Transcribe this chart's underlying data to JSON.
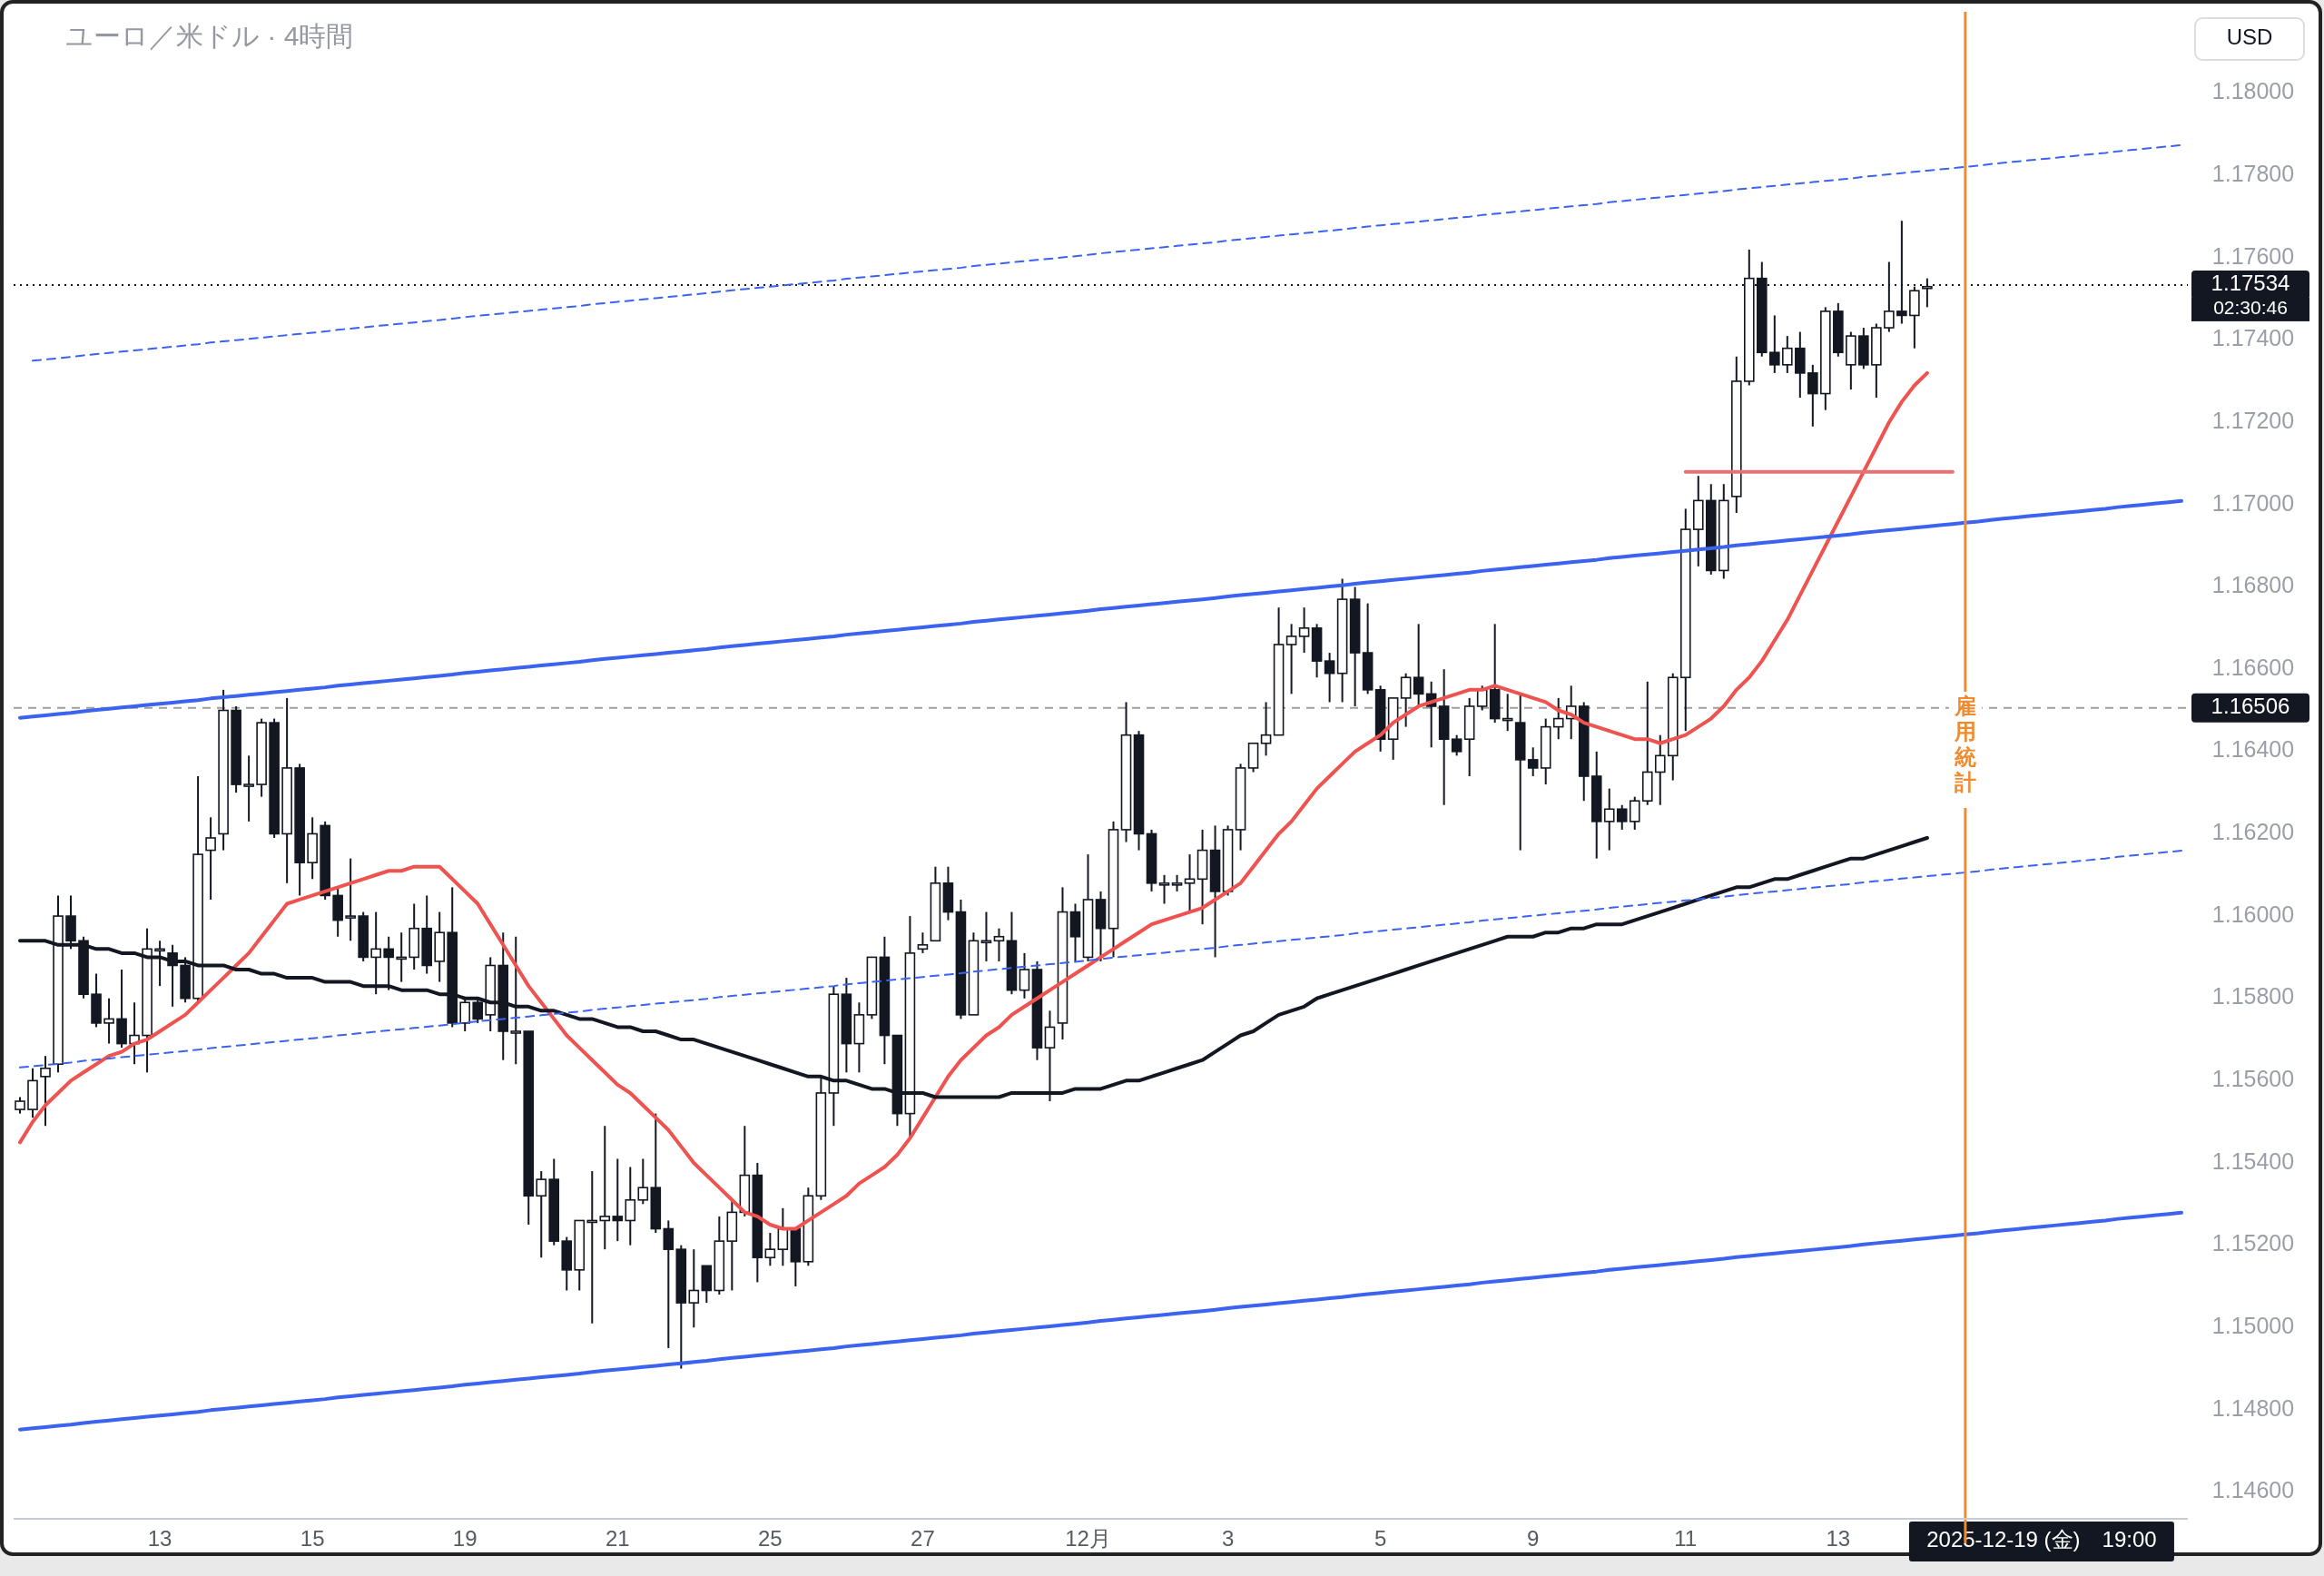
{
  "chart_data": {
    "type": "candlestick",
    "title": "ユーロ／米ドル · 4時間",
    "ylabel": "USD",
    "categories": [
      null,
      null,
      null,
      null,
      null,
      null,
      null,
      null,
      null,
      null,
      null,
      "13",
      null,
      null,
      null,
      null,
      null,
      null,
      null,
      null,
      null,
      null,
      null,
      "15",
      null,
      null,
      null,
      null,
      null,
      null,
      null,
      null,
      null,
      null,
      null,
      "19",
      null,
      null,
      null,
      null,
      null,
      null,
      null,
      null,
      null,
      null,
      null,
      "21",
      null,
      null,
      null,
      null,
      null,
      null,
      null,
      null,
      null,
      null,
      null,
      "25",
      null,
      null,
      null,
      null,
      null,
      null,
      null,
      null,
      null,
      null,
      null,
      "27",
      null,
      null,
      null,
      null,
      null,
      null,
      null,
      null,
      null,
      null,
      null,
      null,
      "12月",
      null,
      null,
      null,
      null,
      null,
      null,
      null,
      null,
      null,
      null,
      "3",
      null,
      null,
      null,
      null,
      null,
      null,
      null,
      null,
      null,
      null,
      null,
      "5",
      null,
      null,
      null,
      null,
      null,
      null,
      null,
      null,
      null,
      null,
      null,
      "9",
      null,
      null,
      null,
      null,
      null,
      null,
      null,
      null,
      null,
      null,
      null,
      "11",
      null,
      null,
      null,
      null,
      null,
      null,
      null,
      null,
      null,
      null,
      null,
      "13",
      null,
      null,
      null,
      null,
      null,
      null,
      null,
      null,
      null,
      "雇用統計",
      null,
      null,
      null,
      null,
      null,
      "2025-12-19 (金)　19:00",
      null,
      null,
      null,
      null,
      null,
      null,
      null,
      null,
      null,
      null,
      null
    ],
    "ohlc": [
      [
        1.1553,
        1.1556,
        1.1552,
        1.1555
      ],
      [
        1.1553,
        1.1563,
        1.1551,
        1.156
      ],
      [
        1.1561,
        1.1566,
        1.1549,
        1.1563
      ],
      [
        1.1564,
        1.1605,
        1.1562,
        1.16
      ],
      [
        1.16,
        1.1605,
        1.1592,
        1.1594
      ],
      [
        1.1594,
        1.1595,
        1.158,
        1.1581
      ],
      [
        1.1581,
        1.1586,
        1.1573,
        1.1574
      ],
      [
        1.1574,
        1.158,
        1.1569,
        1.1575
      ],
      [
        1.1575,
        1.1587,
        1.1568,
        1.1569
      ],
      [
        1.1569,
        1.1579,
        1.1564,
        1.1571
      ],
      [
        1.1571,
        1.1597,
        1.1562,
        1.1592
      ],
      [
        1.1592,
        1.1594,
        1.1583,
        1.1592
      ],
      [
        1.1591,
        1.1593,
        1.1578,
        1.1588
      ],
      [
        1.1588,
        1.159,
        1.1579,
        1.158
      ],
      [
        1.158,
        1.1634,
        1.1579,
        1.1615
      ],
      [
        1.1616,
        1.1624,
        1.1604,
        1.1619
      ],
      [
        1.162,
        1.1655,
        1.1616,
        1.165
      ],
      [
        1.165,
        1.1651,
        1.163,
        1.1632
      ],
      [
        1.1632,
        1.1639,
        1.1623,
        1.1632
      ],
      [
        1.1632,
        1.1648,
        1.1629,
        1.1647
      ],
      [
        1.1647,
        1.1648,
        1.1619,
        1.162
      ],
      [
        1.162,
        1.1653,
        1.1608,
        1.1636
      ],
      [
        1.1636,
        1.1637,
        1.1605,
        1.1613
      ],
      [
        1.1613,
        1.1624,
        1.1609,
        1.162
      ],
      [
        1.1622,
        1.1623,
        1.1604,
        1.1605
      ],
      [
        1.1605,
        1.1607,
        1.1595,
        1.1599
      ],
      [
        1.16,
        1.1614,
        1.1594,
        1.16
      ],
      [
        1.16,
        1.1601,
        1.1589,
        1.159
      ],
      [
        1.159,
        1.1601,
        1.1581,
        1.1592
      ],
      [
        1.1592,
        1.1595,
        1.1582,
        1.159
      ],
      [
        1.159,
        1.1596,
        1.1584,
        1.159
      ],
      [
        1.159,
        1.1603,
        1.1587,
        1.1597
      ],
      [
        1.1597,
        1.1605,
        1.1586,
        1.1588
      ],
      [
        1.1589,
        1.1601,
        1.1584,
        1.1596
      ],
      [
        1.1596,
        1.1607,
        1.1573,
        1.1574
      ],
      [
        1.1574,
        1.158,
        1.1572,
        1.1579
      ],
      [
        1.1579,
        1.158,
        1.1574,
        1.1575
      ],
      [
        1.1576,
        1.159,
        1.1572,
        1.1588
      ],
      [
        1.1588,
        1.1596,
        1.1565,
        1.1572
      ],
      [
        1.1572,
        1.1595,
        1.1564,
        1.1572
      ],
      [
        1.1572,
        1.1572,
        1.1525,
        1.1532
      ],
      [
        1.1532,
        1.1538,
        1.1517,
        1.1536
      ],
      [
        1.1536,
        1.1541,
        1.152,
        1.1521
      ],
      [
        1.1521,
        1.1522,
        1.1509,
        1.1514
      ],
      [
        1.1514,
        1.1526,
        1.1509,
        1.1526
      ],
      [
        1.1526,
        1.1538,
        1.1501,
        1.1526
      ],
      [
        1.1526,
        1.1549,
        1.1519,
        1.1527
      ],
      [
        1.1527,
        1.1541,
        1.1521,
        1.1526
      ],
      [
        1.1526,
        1.1539,
        1.152,
        1.1531
      ],
      [
        1.1531,
        1.1541,
        1.153,
        1.1534
      ],
      [
        1.1534,
        1.1552,
        1.1523,
        1.1524
      ],
      [
        1.1524,
        1.1526,
        1.1495,
        1.1519
      ],
      [
        1.1519,
        1.152,
        1.149,
        1.1506
      ],
      [
        1.1506,
        1.1519,
        1.15,
        1.1509
      ],
      [
        1.1515,
        1.1515,
        1.1506,
        1.1509
      ],
      [
        1.1509,
        1.1527,
        1.1508,
        1.1521
      ],
      [
        1.1521,
        1.1531,
        1.1509,
        1.1528
      ],
      [
        1.1528,
        1.1549,
        1.1527,
        1.1537
      ],
      [
        1.1537,
        1.154,
        1.1511,
        1.1517
      ],
      [
        1.1517,
        1.1523,
        1.1515,
        1.1519
      ],
      [
        1.1519,
        1.1529,
        1.1515,
        1.1524
      ],
      [
        1.1524,
        1.1524,
        1.151,
        1.1516
      ],
      [
        1.1516,
        1.1534,
        1.1515,
        1.1532
      ],
      [
        1.1532,
        1.1561,
        1.1531,
        1.1557
      ],
      [
        1.1557,
        1.1583,
        1.1549,
        1.1581
      ],
      [
        1.1581,
        1.1585,
        1.1562,
        1.1569
      ],
      [
        1.1569,
        1.1579,
        1.1562,
        1.1576
      ],
      [
        1.1576,
        1.159,
        1.1575,
        1.159
      ],
      [
        1.159,
        1.1595,
        1.1564,
        1.1571
      ],
      [
        1.1571,
        1.1571,
        1.1549,
        1.1552
      ],
      [
        1.1552,
        1.16,
        1.1546,
        1.1591
      ],
      [
        1.1592,
        1.1596,
        1.1591,
        1.1593
      ],
      [
        1.1594,
        1.1612,
        1.1594,
        1.1608
      ],
      [
        1.1608,
        1.1612,
        1.1599,
        1.1601
      ],
      [
        1.1601,
        1.1604,
        1.1575,
        1.1576
      ],
      [
        1.1576,
        1.1596,
        1.1576,
        1.1594
      ],
      [
        1.1594,
        1.1601,
        1.1589,
        1.1594
      ],
      [
        1.1594,
        1.1597,
        1.1589,
        1.1595
      ],
      [
        1.1594,
        1.1601,
        1.1581,
        1.1582
      ],
      [
        1.1582,
        1.1591,
        1.158,
        1.1587
      ],
      [
        1.1587,
        1.1589,
        1.1565,
        1.1568
      ],
      [
        1.1568,
        1.1577,
        1.1555,
        1.1573
      ],
      [
        1.1574,
        1.1607,
        1.157,
        1.1601
      ],
      [
        1.1601,
        1.1603,
        1.1589,
        1.1595
      ],
      [
        1.159,
        1.1615,
        1.1589,
        1.1604
      ],
      [
        1.1604,
        1.1606,
        1.1589,
        1.1597
      ],
      [
        1.1597,
        1.1623,
        1.159,
        1.1621
      ],
      [
        1.1621,
        1.1652,
        1.1618,
        1.1644
      ],
      [
        1.1644,
        1.1645,
        1.1616,
        1.162
      ],
      [
        1.162,
        1.1621,
        1.1606,
        1.1608
      ],
      [
        1.1608,
        1.161,
        1.1603,
        1.1608
      ],
      [
        1.1608,
        1.161,
        1.1606,
        1.1608
      ],
      [
        1.1608,
        1.1615,
        1.1601,
        1.1609
      ],
      [
        1.1609,
        1.1621,
        1.1598,
        1.1616
      ],
      [
        1.1616,
        1.1622,
        1.159,
        1.1606
      ],
      [
        1.1606,
        1.1622,
        1.1605,
        1.1621
      ],
      [
        1.1621,
        1.1637,
        1.1616,
        1.1636
      ],
      [
        1.1636,
        1.1642,
        1.1635,
        1.1642
      ],
      [
        1.1642,
        1.1652,
        1.1639,
        1.1644
      ],
      [
        1.1644,
        1.1675,
        1.1644,
        1.1666
      ],
      [
        1.1666,
        1.1671,
        1.1654,
        1.1668
      ],
      [
        1.1668,
        1.1675,
        1.1664,
        1.167
      ],
      [
        1.167,
        1.1671,
        1.1658,
        1.1662
      ],
      [
        1.1662,
        1.1664,
        1.1652,
        1.1659
      ],
      [
        1.1659,
        1.1682,
        1.1652,
        1.1677
      ],
      [
        1.1677,
        1.168,
        1.1651,
        1.1664
      ],
      [
        1.1664,
        1.1676,
        1.1654,
        1.1655
      ],
      [
        1.1655,
        1.1656,
        1.164,
        1.1643
      ],
      [
        1.1643,
        1.1653,
        1.1638,
        1.1653
      ],
      [
        1.1653,
        1.1659,
        1.1646,
        1.1658
      ],
      [
        1.1658,
        1.1671,
        1.1651,
        1.1654
      ],
      [
        1.1654,
        1.1657,
        1.1641,
        1.1651
      ],
      [
        1.1651,
        1.166,
        1.1627,
        1.1643
      ],
      [
        1.1643,
        1.1644,
        1.1639,
        1.164
      ],
      [
        1.1643,
        1.1653,
        1.1634,
        1.1651
      ],
      [
        1.1651,
        1.1656,
        1.165,
        1.1655
      ],
      [
        1.1655,
        1.1671,
        1.1647,
        1.1648
      ],
      [
        1.1648,
        1.1654,
        1.1645,
        1.1648
      ],
      [
        1.1647,
        1.1654,
        1.1616,
        1.1638
      ],
      [
        1.1638,
        1.1641,
        1.1634,
        1.1636
      ],
      [
        1.1636,
        1.1648,
        1.1632,
        1.1646
      ],
      [
        1.1646,
        1.1653,
        1.1643,
        1.1648
      ],
      [
        1.1648,
        1.1656,
        1.1643,
        1.1651
      ],
      [
        1.1651,
        1.1652,
        1.1628,
        1.1634
      ],
      [
        1.1634,
        1.164,
        1.1614,
        1.1623
      ],
      [
        1.1623,
        1.1631,
        1.1616,
        1.1626
      ],
      [
        1.1626,
        1.1627,
        1.1621,
        1.1623
      ],
      [
        1.1623,
        1.1629,
        1.1621,
        1.1628
      ],
      [
        1.1628,
        1.1657,
        1.1627,
        1.1635
      ],
      [
        1.1635,
        1.1644,
        1.1627,
        1.1639
      ],
      [
        1.1639,
        1.1659,
        1.1633,
        1.1658
      ],
      [
        1.1658,
        1.1699,
        1.1645,
        1.1694
      ],
      [
        1.1694,
        1.1707,
        1.1685,
        1.1701
      ],
      [
        1.1701,
        1.1705,
        1.1683,
        1.1684
      ],
      [
        1.1684,
        1.1705,
        1.1682,
        1.1701
      ],
      [
        1.1702,
        1.1736,
        1.1698,
        1.173
      ],
      [
        1.173,
        1.1762,
        1.1729,
        1.1755
      ],
      [
        1.1755,
        1.1759,
        1.1736,
        1.1737
      ],
      [
        1.1737,
        1.1746,
        1.1732,
        1.1734
      ],
      [
        1.1734,
        1.1741,
        1.1732,
        1.1738
      ],
      [
        1.1738,
        1.1742,
        1.1726,
        1.1732
      ],
      [
        1.1732,
        1.1734,
        1.1719,
        1.1727
      ],
      [
        1.1727,
        1.1748,
        1.1723,
        1.1747
      ],
      [
        1.1747,
        1.1749,
        1.1736,
        1.1737
      ],
      [
        1.1734,
        1.1742,
        1.1728,
        1.1741
      ],
      [
        1.1741,
        1.1743,
        1.1733,
        1.1734
      ],
      [
        1.1734,
        1.1744,
        1.1726,
        1.1743
      ],
      [
        1.1743,
        1.1759,
        1.1742,
        1.1747
      ],
      [
        1.1747,
        1.1769,
        1.1744,
        1.1746
      ],
      [
        1.1746,
        1.1753,
        1.1738,
        1.1752
      ],
      [
        1.1753,
        1.1755,
        1.1748,
        1.1753
      ],
      null,
      null,
      null,
      null,
      null,
      null,
      null,
      null,
      null,
      null,
      null,
      null,
      null,
      null,
      null,
      null,
      null,
      null,
      null,
      null
    ],
    "series": [
      {
        "type": "line",
        "color": "#ef5350",
        "line_style": "solid",
        "values": [
          1.1545,
          1.155,
          1.1554,
          1.1557,
          1.156,
          1.1562,
          1.1564,
          1.1566,
          1.1567,
          1.1569,
          1.157,
          1.1572,
          1.1574,
          1.1576,
          1.1579,
          1.1582,
          1.1585,
          1.1588,
          1.1591,
          1.1595,
          1.1599,
          1.1603,
          1.1604,
          1.1605,
          1.1606,
          1.1607,
          1.1608,
          1.1609,
          1.161,
          1.1611,
          1.1611,
          1.1612,
          1.1612,
          1.1612,
          1.1609,
          1.1606,
          1.1603,
          1.1598,
          1.1593,
          1.1588,
          1.1583,
          1.1579,
          1.1575,
          1.1571,
          1.1568,
          1.1565,
          1.1562,
          1.1559,
          1.1557,
          1.1554,
          1.1551,
          1.1548,
          1.1544,
          1.154,
          1.1537,
          1.1534,
          1.1531,
          1.1528,
          1.1527,
          1.1525,
          1.1524,
          1.1524,
          1.1526,
          1.1528,
          1.153,
          1.1532,
          1.1535,
          1.1537,
          1.1539,
          1.1542,
          1.1546,
          1.1551,
          1.1556,
          1.1561,
          1.1565,
          1.1568,
          1.1571,
          1.1573,
          1.1576,
          1.1578,
          1.158,
          1.1582,
          1.1584,
          1.1586,
          1.1588,
          1.159,
          1.1592,
          1.1594,
          1.1596,
          1.1598,
          1.1599,
          1.16,
          1.1601,
          1.1602,
          1.1604,
          1.1606,
          1.1608,
          1.1612,
          1.1616,
          1.162,
          1.1623,
          1.1627,
          1.1631,
          1.1634,
          1.1637,
          1.164,
          1.1642,
          1.1644,
          1.1647,
          1.1649,
          1.1651,
          1.1652,
          1.1653,
          1.1654,
          1.1655,
          1.1655,
          1.1656,
          1.1655,
          1.1654,
          1.1653,
          1.1652,
          1.165,
          1.1649,
          1.1647,
          1.1646,
          1.1645,
          1.1644,
          1.1643,
          1.1643,
          1.1642,
          1.1643,
          1.1644,
          1.1646,
          1.1648,
          1.1651,
          1.1655,
          1.1658,
          1.1662,
          1.1667,
          1.1672,
          1.1678,
          1.1684,
          1.169,
          1.1696,
          1.1702,
          1.1708,
          1.1714,
          1.172,
          1.1725,
          1.1729,
          1.1732,
          null,
          null,
          null,
          null,
          null,
          null,
          null,
          null,
          null,
          null,
          null,
          null,
          null,
          null,
          null,
          null,
          null,
          null,
          null,
          null
        ]
      },
      {
        "type": "line",
        "color": "#131722",
        "line_style": "solid",
        "values": [
          1.1594,
          1.1594,
          1.1594,
          1.1593,
          1.1593,
          1.1593,
          1.1592,
          1.1592,
          1.1591,
          1.1591,
          1.159,
          1.159,
          1.1589,
          1.1589,
          1.1588,
          1.1588,
          1.1588,
          1.1587,
          1.1587,
          1.1586,
          1.1586,
          1.1585,
          1.1585,
          1.1585,
          1.1584,
          1.1584,
          1.1584,
          1.1583,
          1.1583,
          1.1583,
          1.1582,
          1.1582,
          1.1582,
          1.1581,
          1.1581,
          1.158,
          1.158,
          1.1579,
          1.1579,
          1.1578,
          1.1578,
          1.1577,
          1.1577,
          1.1576,
          1.1575,
          1.1575,
          1.1574,
          1.1573,
          1.1573,
          1.1572,
          1.1572,
          1.1571,
          1.157,
          1.157,
          1.1569,
          1.1568,
          1.1567,
          1.1566,
          1.1565,
          1.1564,
          1.1563,
          1.1562,
          1.1561,
          1.1561,
          1.156,
          1.156,
          1.1559,
          1.1558,
          1.1558,
          1.1557,
          1.1557,
          1.1557,
          1.1556,
          1.1556,
          1.1556,
          1.1556,
          1.1556,
          1.1556,
          1.1557,
          1.1557,
          1.1557,
          1.1557,
          1.1557,
          1.1558,
          1.1558,
          1.1558,
          1.1559,
          1.156,
          1.156,
          1.1561,
          1.1562,
          1.1563,
          1.1564,
          1.1565,
          1.1567,
          1.1569,
          1.1571,
          1.1572,
          1.1574,
          1.1576,
          1.1577,
          1.1578,
          1.158,
          1.1581,
          1.1582,
          1.1583,
          1.1584,
          1.1585,
          1.1586,
          1.1587,
          1.1588,
          1.1589,
          1.159,
          1.1591,
          1.1592,
          1.1593,
          1.1594,
          1.1595,
          1.1595,
          1.1595,
          1.1596,
          1.1596,
          1.1597,
          1.1597,
          1.1598,
          1.1598,
          1.1598,
          1.1599,
          1.16,
          1.1601,
          1.1602,
          1.1603,
          1.1604,
          1.1605,
          1.1606,
          1.1607,
          1.1607,
          1.1608,
          1.1609,
          1.1609,
          1.161,
          1.1611,
          1.1612,
          1.1613,
          1.1614,
          1.1614,
          1.1615,
          1.1616,
          1.1617,
          1.1618,
          1.1619,
          null,
          null,
          null,
          null,
          null,
          null,
          null,
          null,
          null,
          null,
          null,
          null,
          null,
          null,
          null,
          null,
          null,
          null,
          null,
          null
        ]
      },
      {
        "type": "line",
        "color": "#3b63f0",
        "line_style": "solid",
        "values": [
          1.16482,
          1.16485,
          1.16488,
          1.16491,
          1.16494,
          1.16498,
          1.16501,
          1.16504,
          1.16507,
          1.1651,
          1.16513,
          1.16516,
          1.16519,
          1.16522,
          1.16525,
          1.16529,
          1.16532,
          1.16535,
          1.16538,
          1.16541,
          1.16544,
          1.16547,
          1.1655,
          1.16553,
          1.16556,
          1.1656,
          1.16563,
          1.16566,
          1.16569,
          1.16572,
          1.16575,
          1.16578,
          1.16581,
          1.16584,
          1.16587,
          1.16591,
          1.16594,
          1.16597,
          1.166,
          1.16603,
          1.16606,
          1.16609,
          1.16612,
          1.16615,
          1.16618,
          1.16622,
          1.16625,
          1.16628,
          1.16631,
          1.16634,
          1.16637,
          1.1664,
          1.16643,
          1.16646,
          1.16649,
          1.16653,
          1.16656,
          1.16659,
          1.16662,
          1.16665,
          1.16668,
          1.16671,
          1.16674,
          1.16677,
          1.1668,
          1.16684,
          1.16687,
          1.1669,
          1.16693,
          1.16696,
          1.16699,
          1.16702,
          1.16705,
          1.16708,
          1.16711,
          1.16715,
          1.16718,
          1.16721,
          1.16724,
          1.16727,
          1.1673,
          1.16733,
          1.16736,
          1.16739,
          1.16742,
          1.16746,
          1.16749,
          1.16752,
          1.16755,
          1.16758,
          1.16761,
          1.16764,
          1.16767,
          1.1677,
          1.16773,
          1.16777,
          1.1678,
          1.16783,
          1.16786,
          1.16789,
          1.16792,
          1.16795,
          1.16798,
          1.16801,
          1.16804,
          1.16808,
          1.16811,
          1.16814,
          1.16817,
          1.1682,
          1.16823,
          1.16826,
          1.16829,
          1.16832,
          1.16835,
          1.16839,
          1.16842,
          1.16845,
          1.16848,
          1.16851,
          1.16854,
          1.16857,
          1.1686,
          1.16863,
          1.16866,
          1.1687,
          1.16873,
          1.16876,
          1.16879,
          1.16882,
          1.16885,
          1.16888,
          1.16891,
          1.16894,
          1.16897,
          1.16901,
          1.16904,
          1.16907,
          1.1691,
          1.16913,
          1.16916,
          1.16919,
          1.16922,
          1.16925,
          1.16928,
          1.16932,
          1.16935,
          1.16938,
          1.16941,
          1.16944,
          1.16947,
          1.1695,
          1.16953,
          1.16956,
          1.16959,
          1.16963,
          1.16966,
          1.16969,
          1.16972,
          1.16975,
          1.16978,
          1.16981,
          1.16984,
          1.16987,
          1.1699,
          1.16994,
          1.16997,
          1.17,
          1.17003,
          1.17006,
          1.17009
        ]
      },
      {
        "type": "line",
        "color": "#3b63f0",
        "line_style": "solid",
        "values": [
          1.14752,
          1.14755,
          1.14758,
          1.14761,
          1.14764,
          1.14768,
          1.14771,
          1.14774,
          1.14777,
          1.1478,
          1.14783,
          1.14786,
          1.14789,
          1.14792,
          1.14795,
          1.14799,
          1.14802,
          1.14805,
          1.14808,
          1.14811,
          1.14814,
          1.14817,
          1.1482,
          1.14823,
          1.14826,
          1.1483,
          1.14833,
          1.14836,
          1.14839,
          1.14842,
          1.14845,
          1.14848,
          1.14851,
          1.14854,
          1.14857,
          1.14861,
          1.14864,
          1.14867,
          1.1487,
          1.14873,
          1.14876,
          1.14879,
          1.14882,
          1.14885,
          1.14888,
          1.14892,
          1.14895,
          1.14898,
          1.14901,
          1.14904,
          1.14907,
          1.1491,
          1.14913,
          1.14916,
          1.14919,
          1.14923,
          1.14926,
          1.14929,
          1.14932,
          1.14935,
          1.14938,
          1.14941,
          1.14944,
          1.14947,
          1.1495,
          1.14954,
          1.14957,
          1.1496,
          1.14963,
          1.14966,
          1.14969,
          1.14972,
          1.14975,
          1.14978,
          1.14981,
          1.14985,
          1.14988,
          1.14991,
          1.14994,
          1.14997,
          1.15,
          1.15003,
          1.15006,
          1.15009,
          1.15012,
          1.15016,
          1.15019,
          1.15022,
          1.15025,
          1.15028,
          1.15031,
          1.15034,
          1.15037,
          1.1504,
          1.15043,
          1.15047,
          1.1505,
          1.15053,
          1.15056,
          1.15059,
          1.15062,
          1.15065,
          1.15068,
          1.15071,
          1.15074,
          1.15078,
          1.15081,
          1.15084,
          1.15087,
          1.1509,
          1.15093,
          1.15096,
          1.15099,
          1.15102,
          1.15105,
          1.15109,
          1.15112,
          1.15115,
          1.15118,
          1.15121,
          1.15124,
          1.15127,
          1.1513,
          1.15133,
          1.15136,
          1.1514,
          1.15143,
          1.15146,
          1.15149,
          1.15152,
          1.15155,
          1.15158,
          1.15161,
          1.15164,
          1.15167,
          1.15171,
          1.15174,
          1.15177,
          1.1518,
          1.15183,
          1.15186,
          1.15189,
          1.15192,
          1.15195,
          1.15198,
          1.15202,
          1.15205,
          1.15208,
          1.15211,
          1.15214,
          1.15217,
          1.1522,
          1.15223,
          1.15226,
          1.15229,
          1.15233,
          1.15236,
          1.15239,
          1.15242,
          1.15245,
          1.15248,
          1.15251,
          1.15254,
          1.15257,
          1.1526,
          1.15264,
          1.15267,
          1.1527,
          1.15273,
          1.15276,
          1.15279
        ]
      },
      {
        "type": "line",
        "color": "#3b63f0",
        "line_style": "dashed",
        "values": [
          null,
          1.1735,
          1.17353,
          1.17356,
          1.17359,
          1.17363,
          1.17366,
          1.17369,
          1.17372,
          1.17375,
          1.17378,
          1.17381,
          1.17384,
          1.17387,
          1.1739,
          1.17394,
          1.17397,
          1.174,
          1.17403,
          1.17406,
          1.17409,
          1.17412,
          1.17415,
          1.17418,
          1.17421,
          1.17425,
          1.17428,
          1.17431,
          1.17434,
          1.17437,
          1.1744,
          1.17443,
          1.17446,
          1.17449,
          1.17452,
          1.17456,
          1.17459,
          1.17462,
          1.17465,
          1.17468,
          1.17471,
          1.17474,
          1.17477,
          1.1748,
          1.17483,
          1.17487,
          1.1749,
          1.17493,
          1.17496,
          1.17499,
          1.17502,
          1.17505,
          1.17508,
          1.17511,
          1.17514,
          1.17518,
          1.17521,
          1.17524,
          1.17527,
          1.1753,
          1.17533,
          1.17536,
          1.17539,
          1.17542,
          1.17545,
          1.17549,
          1.17552,
          1.17555,
          1.17558,
          1.17561,
          1.17564,
          1.17567,
          1.1757,
          1.17573,
          1.17576,
          1.1758,
          1.17583,
          1.17586,
          1.17589,
          1.17592,
          1.17595,
          1.17598,
          1.17601,
          1.17604,
          1.17607,
          1.17611,
          1.17614,
          1.17617,
          1.1762,
          1.17623,
          1.17626,
          1.17629,
          1.17632,
          1.17635,
          1.17638,
          1.17642,
          1.17645,
          1.17648,
          1.17651,
          1.17654,
          1.17657,
          1.1766,
          1.17663,
          1.17666,
          1.17669,
          1.17673,
          1.17676,
          1.17679,
          1.17682,
          1.17685,
          1.17688,
          1.17691,
          1.17694,
          1.17697,
          1.177,
          1.17704,
          1.17707,
          1.1771,
          1.17713,
          1.17716,
          1.17719,
          1.17722,
          1.17725,
          1.17728,
          1.17731,
          1.17735,
          1.17738,
          1.17741,
          1.17744,
          1.17747,
          1.1775,
          1.17753,
          1.17756,
          1.17759,
          1.17762,
          1.17766,
          1.17769,
          1.17772,
          1.17775,
          1.17778,
          1.17781,
          1.17784,
          1.17787,
          1.1779,
          1.17793,
          1.17797,
          1.178,
          1.17803,
          1.17806,
          1.17809,
          1.17812,
          1.17815,
          1.17818,
          1.17821,
          1.17824,
          1.17828,
          1.17831,
          1.17834,
          1.17837,
          1.1784,
          1.17843,
          1.17846,
          1.17849,
          1.17852,
          1.17855,
          1.17859,
          1.17862,
          1.17865,
          1.17868,
          1.17871,
          1.17874
        ]
      },
      {
        "type": "line",
        "color": "#3b63f0",
        "line_style": "dashed",
        "values": [
          1.15632,
          1.15635,
          1.15638,
          1.15641,
          1.15644,
          1.15648,
          1.15651,
          1.15654,
          1.15657,
          1.1566,
          1.15663,
          1.15666,
          1.15669,
          1.15672,
          1.15675,
          1.15679,
          1.15682,
          1.15685,
          1.15688,
          1.15691,
          1.15694,
          1.15697,
          1.157,
          1.15703,
          1.15706,
          1.1571,
          1.15713,
          1.15716,
          1.15719,
          1.15722,
          1.15725,
          1.15728,
          1.15731,
          1.15734,
          1.15737,
          1.15741,
          1.15744,
          1.15747,
          1.1575,
          1.15753,
          1.15756,
          1.15759,
          1.15762,
          1.15765,
          1.15768,
          1.15772,
          1.15775,
          1.15778,
          1.15781,
          1.15784,
          1.15787,
          1.1579,
          1.15793,
          1.15796,
          1.15799,
          1.15803,
          1.15806,
          1.15809,
          1.15812,
          1.15815,
          1.15818,
          1.15821,
          1.15824,
          1.15827,
          1.1583,
          1.15834,
          1.15837,
          1.1584,
          1.15843,
          1.15846,
          1.15849,
          1.15852,
          1.15855,
          1.15858,
          1.15861,
          1.15865,
          1.15868,
          1.15871,
          1.15874,
          1.15877,
          1.1588,
          1.15883,
          1.15886,
          1.15889,
          1.15892,
          1.15896,
          1.15899,
          1.15902,
          1.15905,
          1.15908,
          1.15911,
          1.15914,
          1.15917,
          1.1592,
          1.15923,
          1.15927,
          1.1593,
          1.15933,
          1.15936,
          1.15939,
          1.15942,
          1.15945,
          1.15948,
          1.15951,
          1.15954,
          1.15958,
          1.15961,
          1.15964,
          1.15967,
          1.1597,
          1.15973,
          1.15976,
          1.15979,
          1.15982,
          1.15985,
          1.15989,
          1.15992,
          1.15995,
          1.15998,
          1.16001,
          1.16004,
          1.16007,
          1.1601,
          1.16013,
          1.16016,
          1.1602,
          1.16023,
          1.16026,
          1.16029,
          1.16032,
          1.16035,
          1.16038,
          1.16041,
          1.16044,
          1.16047,
          1.16051,
          1.16054,
          1.16057,
          1.1606,
          1.16063,
          1.16066,
          1.16069,
          1.16072,
          1.16075,
          1.16078,
          1.16082,
          1.16085,
          1.16088,
          1.16091,
          1.16094,
          1.16097,
          1.161,
          1.16103,
          1.16106,
          1.16109,
          1.16113,
          1.16116,
          1.16119,
          1.16122,
          1.16125,
          1.16128,
          1.16131,
          1.16134,
          1.16137,
          1.1614,
          1.16144,
          1.16147,
          1.1615,
          1.16153,
          1.16156,
          1.16159
        ]
      },
      {
        "type": "line",
        "color": "#e57373",
        "line_style": "solid",
        "values": [
          null,
          null,
          null,
          null,
          null,
          null,
          null,
          null,
          null,
          null,
          null,
          null,
          null,
          null,
          null,
          null,
          null,
          null,
          null,
          null,
          null,
          null,
          null,
          null,
          null,
          null,
          null,
          null,
          null,
          null,
          null,
          null,
          null,
          null,
          null,
          null,
          null,
          null,
          null,
          null,
          null,
          null,
          null,
          null,
          null,
          null,
          null,
          null,
          null,
          null,
          null,
          null,
          null,
          null,
          null,
          null,
          null,
          null,
          null,
          null,
          null,
          null,
          null,
          null,
          null,
          null,
          null,
          null,
          null,
          null,
          null,
          null,
          null,
          null,
          null,
          null,
          null,
          null,
          null,
          null,
          null,
          null,
          null,
          null,
          null,
          null,
          null,
          null,
          null,
          null,
          null,
          null,
          null,
          null,
          null,
          null,
          null,
          null,
          null,
          null,
          null,
          null,
          null,
          null,
          null,
          null,
          null,
          null,
          null,
          null,
          null,
          null,
          null,
          null,
          null,
          null,
          null,
          null,
          null,
          null,
          null,
          null,
          null,
          null,
          null,
          null,
          null,
          null,
          null,
          null,
          null,
          1.1708,
          1.1708,
          1.1708,
          1.1708,
          1.1708,
          1.1708,
          1.1708,
          1.1708,
          1.1708,
          1.1708,
          1.1708,
          1.1708,
          1.1708,
          1.1708,
          1.1708,
          1.1708,
          1.1708,
          1.1708,
          1.1708,
          1.1708,
          1.1708,
          1.1708,
          null,
          null,
          null,
          null,
          null,
          null,
          null,
          null,
          null,
          null,
          null,
          null,
          null,
          null,
          null,
          null,
          null,
          null
        ]
      }
    ],
    "ylim": [
      1.14535,
      1.18198
    ],
    "yticks": [
      {
        "value": 1.146,
        "label": "1.14600"
      },
      {
        "value": 1.148,
        "label": "1.14800"
      },
      {
        "value": 1.15,
        "label": "1.15000"
      },
      {
        "value": 1.152,
        "label": "1.15200"
      },
      {
        "value": 1.154,
        "label": "1.15400"
      },
      {
        "value": 1.156,
        "label": "1.15600"
      },
      {
        "value": 1.158,
        "label": "1.15800"
      },
      {
        "value": 1.16,
        "label": "1.16000"
      },
      {
        "value": 1.162,
        "label": "1.16200"
      },
      {
        "value": 1.164,
        "label": "1.16400"
      },
      {
        "value": 1.166,
        "label": "1.16600"
      },
      {
        "value": 1.168,
        "label": "1.16800"
      },
      {
        "value": 1.17,
        "label": "1.17000"
      },
      {
        "value": 1.172,
        "label": "1.17200"
      },
      {
        "value": 1.174,
        "label": "1.17400"
      },
      {
        "value": 1.176,
        "label": "1.17600"
      },
      {
        "value": 1.178,
        "label": "1.17800"
      },
      {
        "value": 1.18,
        "label": "1.18000"
      }
    ],
    "ref_lines": [
      {
        "axis": "y",
        "value": 1.16506,
        "label": "1.16506",
        "color": "#9e9e9e",
        "line_style": "dashed"
      },
      {
        "axis": "y",
        "value": 1.17534,
        "label": "1.17534",
        "color": "#131722",
        "line_style": "dotted"
      },
      {
        "axis": "x",
        "value": "雇用統計",
        "color": "#f08a2c",
        "line_style": "solid"
      }
    ],
    "annotations": [
      "02:30:46"
    ]
  }
}
